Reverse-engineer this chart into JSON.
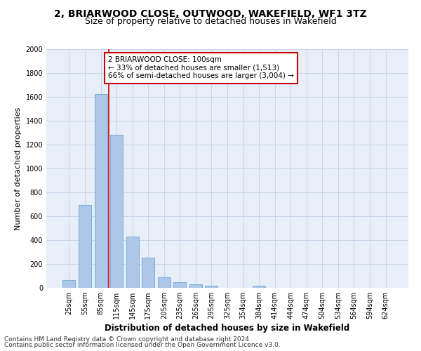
{
  "title": "2, BRIARWOOD CLOSE, OUTWOOD, WAKEFIELD, WF1 3TZ",
  "subtitle": "Size of property relative to detached houses in Wakefield",
  "xlabel": "Distribution of detached houses by size in Wakefield",
  "ylabel": "Number of detached properties",
  "categories": [
    "25sqm",
    "55sqm",
    "85sqm",
    "115sqm",
    "145sqm",
    "175sqm",
    "205sqm",
    "235sqm",
    "265sqm",
    "295sqm",
    "325sqm",
    "354sqm",
    "384sqm",
    "414sqm",
    "444sqm",
    "474sqm",
    "504sqm",
    "534sqm",
    "564sqm",
    "594sqm",
    "624sqm"
  ],
  "values": [
    65,
    695,
    1625,
    1280,
    430,
    255,
    90,
    50,
    28,
    18,
    0,
    0,
    20,
    0,
    0,
    0,
    0,
    0,
    0,
    0,
    0
  ],
  "bar_color": "#aec6e8",
  "bar_edge_color": "#6aaad4",
  "grid_color": "#c8d4e8",
  "background_color": "#e8eef8",
  "annotation_line1": "2 BRIARWOOD CLOSE: 100sqm",
  "annotation_line2": "← 33% of detached houses are smaller (1,513)",
  "annotation_line3": "66% of semi-detached houses are larger (3,004) →",
  "annotation_box_color": "#ffffff",
  "annotation_box_edge_color": "#cc0000",
  "ylim": [
    0,
    2000
  ],
  "yticks": [
    0,
    200,
    400,
    600,
    800,
    1000,
    1200,
    1400,
    1600,
    1800,
    2000
  ],
  "footer_line1": "Contains HM Land Registry data © Crown copyright and database right 2024.",
  "footer_line2": "Contains public sector information licensed under the Open Government Licence v3.0.",
  "title_fontsize": 10,
  "subtitle_fontsize": 9,
  "xlabel_fontsize": 8.5,
  "ylabel_fontsize": 8,
  "tick_fontsize": 7,
  "annotation_fontsize": 7.5,
  "footer_fontsize": 6.5
}
